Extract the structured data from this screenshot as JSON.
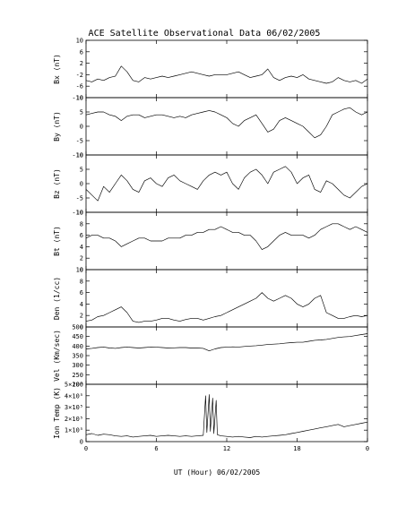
{
  "chart_data": {
    "type": "line",
    "title": "ACE Satellite Observational Data   06/02/2005",
    "xlabel": "UT (Hour)  06/02/2005",
    "x_tick_labels": [
      "0",
      "6",
      "12",
      "18",
      "0"
    ],
    "xlim": [
      0,
      24
    ],
    "panels": [
      {
        "id": "bx",
        "ylabel": "Bx (nT)",
        "ylim": [
          -10,
          10
        ],
        "yticks": [
          -10,
          -6,
          -2,
          2,
          6,
          10
        ],
        "ytick_labels": [
          "-10",
          "-6",
          "-2",
          "2",
          "6",
          "10"
        ],
        "x": [
          0,
          0.5,
          1,
          1.5,
          2,
          2.5,
          3,
          3.5,
          4,
          4.5,
          5,
          5.5,
          6,
          6.5,
          7,
          7.5,
          8,
          8.5,
          9,
          9.5,
          10,
          10.5,
          11,
          11.5,
          12,
          12.5,
          13,
          13.5,
          14,
          14.5,
          15,
          15.5,
          16,
          16.5,
          17,
          17.5,
          18,
          18.5,
          19,
          19.5,
          20,
          20.5,
          21,
          21.5,
          22,
          22.5,
          23,
          23.5,
          24
        ],
        "values": [
          -4,
          -4.5,
          -3.5,
          -4,
          -3,
          -2.5,
          1,
          -1,
          -4,
          -4.5,
          -3,
          -3.5,
          -3,
          -2.5,
          -3,
          -2.5,
          -2,
          -1.5,
          -1,
          -1.5,
          -2,
          -2.5,
          -2,
          -2,
          -2,
          -1.5,
          -1,
          -2,
          -3,
          -2.5,
          -2,
          0,
          -3,
          -4,
          -3,
          -2.5,
          -3,
          -2,
          -3.5,
          -4,
          -4.5,
          -5,
          -4.5,
          -3,
          -4,
          -4.5,
          -4,
          -5,
          -3.5
        ]
      },
      {
        "id": "by",
        "ylabel": "By (nT)",
        "ylim": [
          -10,
          10
        ],
        "yticks": [
          -10,
          -5,
          0,
          5,
          10
        ],
        "ytick_labels": [
          "-10",
          "-5",
          "0",
          "5",
          "10"
        ],
        "x": [
          0,
          0.5,
          1,
          1.5,
          2,
          2.5,
          3,
          3.5,
          4,
          4.5,
          5,
          5.5,
          6,
          6.5,
          7,
          7.5,
          8,
          8.5,
          9,
          9.5,
          10,
          10.5,
          11,
          11.5,
          12,
          12.5,
          13,
          13.5,
          14,
          14.5,
          15,
          15.5,
          16,
          16.5,
          17,
          17.5,
          18,
          18.5,
          19,
          19.5,
          20,
          20.5,
          21,
          21.5,
          22,
          22.5,
          23,
          23.5,
          24
        ],
        "values": [
          4,
          4.5,
          5,
          5,
          4,
          3.5,
          2,
          3.5,
          4,
          4,
          3,
          3.5,
          4,
          4,
          3.5,
          3,
          3.5,
          3,
          4,
          4.5,
          5,
          5.5,
          5,
          4,
          3,
          1,
          0,
          2,
          3,
          4,
          1,
          -2,
          -1,
          2,
          3,
          2,
          1,
          0,
          -2,
          -4,
          -3,
          0,
          4,
          5,
          6,
          6.5,
          5,
          4,
          5
        ]
      },
      {
        "id": "bz",
        "ylabel": "Bz (nT)",
        "ylim": [
          -10,
          10
        ],
        "yticks": [
          -10,
          -5,
          0,
          5,
          10
        ],
        "ytick_labels": [
          "-10",
          "-5",
          "0",
          "5",
          "10"
        ],
        "x": [
          0,
          0.5,
          1,
          1.5,
          2,
          2.5,
          3,
          3.5,
          4,
          4.5,
          5,
          5.5,
          6,
          6.5,
          7,
          7.5,
          8,
          8.5,
          9,
          9.5,
          10,
          10.5,
          11,
          11.5,
          12,
          12.5,
          13,
          13.5,
          14,
          14.5,
          15,
          15.5,
          16,
          16.5,
          17,
          17.5,
          18,
          18.5,
          19,
          19.5,
          20,
          20.5,
          21,
          21.5,
          22,
          22.5,
          23,
          23.5,
          24
        ],
        "values": [
          -2,
          -4,
          -6,
          -1,
          -3,
          0,
          3,
          1,
          -2,
          -3,
          1,
          2,
          0,
          -1,
          2,
          3,
          1,
          0,
          -1,
          -2,
          1,
          3,
          4,
          3,
          4,
          0,
          -2,
          2,
          4,
          5,
          3,
          0,
          4,
          5,
          6,
          4,
          0,
          2,
          3,
          -2,
          -3,
          1,
          0,
          -2,
          -4,
          -5,
          -3,
          -1,
          0
        ]
      },
      {
        "id": "bt",
        "ylabel": "Bt (nT)",
        "ylim": [
          0,
          10
        ],
        "yticks": [
          0,
          2,
          4,
          6,
          8,
          10
        ],
        "ytick_labels": [
          "0",
          "2",
          "4",
          "6",
          "8",
          "10"
        ],
        "x": [
          0,
          0.5,
          1,
          1.5,
          2,
          2.5,
          3,
          3.5,
          4,
          4.5,
          5,
          5.5,
          6,
          6.5,
          7,
          7.5,
          8,
          8.5,
          9,
          9.5,
          10,
          10.5,
          11,
          11.5,
          12,
          12.5,
          13,
          13.5,
          14,
          14.5,
          15,
          15.5,
          16,
          16.5,
          17,
          17.5,
          18,
          18.5,
          19,
          19.5,
          20,
          20.5,
          21,
          21.5,
          22,
          22.5,
          23,
          23.5,
          24
        ],
        "values": [
          5.5,
          6,
          6,
          5.5,
          5.5,
          5,
          4,
          4.5,
          5,
          5.5,
          5.5,
          5,
          5,
          5,
          5.5,
          5.5,
          5.5,
          6,
          6,
          6.5,
          6.5,
          7,
          7,
          7.5,
          7,
          6.5,
          6.5,
          6,
          6,
          5,
          3.5,
          4,
          5,
          6,
          6.5,
          6,
          6,
          6,
          5.5,
          6,
          7,
          7.5,
          8,
          8,
          7.5,
          7,
          7.5,
          7,
          6.5
        ]
      },
      {
        "id": "den",
        "ylabel": "Den (1/cc)",
        "ylim": [
          0,
          10
        ],
        "yticks": [
          0,
          2,
          4,
          6,
          8,
          10
        ],
        "ytick_labels": [
          "0",
          "2",
          "4",
          "6",
          "8",
          "10"
        ],
        "x": [
          0,
          0.5,
          1,
          1.5,
          2,
          2.5,
          3,
          3.5,
          4,
          4.5,
          5,
          5.5,
          6,
          6.5,
          7,
          7.5,
          8,
          8.5,
          9,
          9.5,
          10,
          10.5,
          11,
          11.5,
          12,
          12.5,
          13,
          13.5,
          14,
          14.5,
          15,
          15.5,
          16,
          16.5,
          17,
          17.5,
          18,
          18.5,
          19,
          19.5,
          20,
          20.5,
          21,
          21.5,
          22,
          22.5,
          23,
          23.5,
          24
        ],
        "values": [
          1,
          1.2,
          1.8,
          2,
          2.5,
          3,
          3.5,
          2.5,
          1,
          0.8,
          1,
          1,
          1.2,
          1.5,
          1.5,
          1.2,
          1,
          1.3,
          1.5,
          1.5,
          1.2,
          1.5,
          1.8,
          2,
          2.5,
          3,
          3.5,
          4,
          4.5,
          5,
          6,
          5,
          4.5,
          5,
          5.5,
          5,
          4,
          3.5,
          4,
          5,
          5.5,
          2.5,
          2,
          1.5,
          1.5,
          1.8,
          2,
          1.8,
          2
        ]
      },
      {
        "id": "vel",
        "ylabel": "Vel (Km/sec)",
        "ylim": [
          200,
          500
        ],
        "yticks": [
          200,
          250,
          300,
          350,
          400,
          450,
          500
        ],
        "ytick_labels": [
          "200",
          "250",
          "300",
          "350",
          "400",
          "450",
          "500"
        ],
        "x": [
          0,
          0.5,
          1,
          1.5,
          2,
          2.5,
          3,
          3.5,
          4,
          4.5,
          5,
          5.5,
          6,
          6.5,
          7,
          7.5,
          8,
          8.5,
          9,
          9.5,
          10,
          10.5,
          11,
          11.5,
          12,
          12.5,
          13,
          13.5,
          14,
          14.5,
          15,
          15.5,
          16,
          16.5,
          17,
          17.5,
          18,
          18.5,
          19,
          19.5,
          20,
          20.5,
          21,
          21.5,
          22,
          22.5,
          23,
          23.5,
          24
        ],
        "values": [
          385,
          388,
          392,
          395,
          390,
          388,
          392,
          395,
          392,
          390,
          392,
          395,
          394,
          392,
          390,
          391,
          392,
          392,
          390,
          390,
          388,
          375,
          385,
          392,
          394,
          396,
          395,
          398,
          400,
          402,
          405,
          408,
          410,
          412,
          415,
          418,
          420,
          420,
          425,
          430,
          432,
          435,
          440,
          445,
          448,
          450,
          455,
          460,
          465
        ]
      },
      {
        "id": "temp",
        "ylabel": "Ion Temp (K)",
        "ylim": [
          0,
          500000
        ],
        "yticks": [
          0,
          100000,
          200000,
          300000,
          400000,
          500000
        ],
        "ytick_labels": [
          "0",
          "1×10⁵",
          "2×10⁵",
          "3×10⁵",
          "4×10⁵",
          "5×10⁵"
        ],
        "x": [
          0,
          0.5,
          1,
          1.5,
          2,
          2.5,
          3,
          3.5,
          4,
          4.5,
          5,
          5.5,
          6,
          6.5,
          7,
          7.5,
          8,
          8.5,
          9,
          9.5,
          10,
          10.2,
          10.3,
          10.5,
          10.6,
          10.8,
          10.9,
          11.1,
          11.2,
          11.5,
          12,
          12.5,
          13,
          13.5,
          14,
          14.5,
          15,
          15.5,
          16,
          16.5,
          17,
          17.5,
          18,
          18.5,
          19,
          19.5,
          20,
          20.5,
          21,
          21.5,
          22,
          22.5,
          23,
          23.5,
          24
        ],
        "values": [
          60000,
          70000,
          55000,
          65000,
          60000,
          50000,
          45000,
          50000,
          40000,
          45000,
          50000,
          55000,
          45000,
          50000,
          55000,
          50000,
          45000,
          50000,
          45000,
          50000,
          55000,
          400000,
          80000,
          410000,
          90000,
          380000,
          70000,
          360000,
          60000,
          50000,
          45000,
          40000,
          45000,
          40000,
          35000,
          45000,
          40000,
          45000,
          50000,
          55000,
          60000,
          70000,
          80000,
          90000,
          100000,
          110000,
          120000,
          130000,
          140000,
          150000,
          130000,
          140000,
          150000,
          160000,
          170000
        ]
      }
    ]
  }
}
